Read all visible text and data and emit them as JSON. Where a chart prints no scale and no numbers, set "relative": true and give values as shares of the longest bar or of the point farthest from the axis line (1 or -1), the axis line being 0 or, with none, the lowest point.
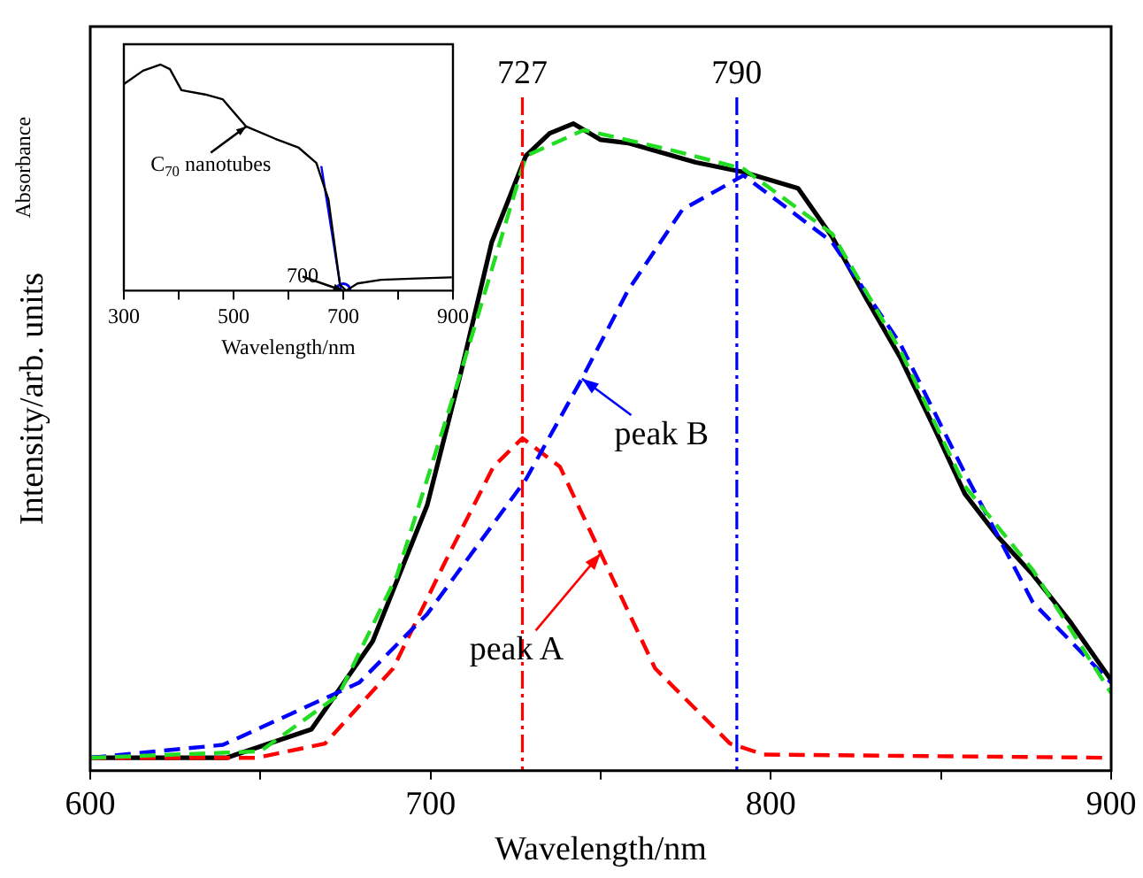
{
  "chart_data": [
    {
      "type": "line",
      "xlabel": "Wavelength/nm",
      "ylabel": "Intensity/arb. units",
      "relative": true,
      "xlim": [
        600,
        900
      ],
      "xticks": [
        600,
        {
          "value": 650,
          "label": null
        },
        700,
        {
          "value": 750,
          "label": null
        },
        800,
        {
          "value": 850,
          "label": null
        },
        900
      ],
      "legend": false,
      "line_style": "solid",
      "marker": "none",
      "series": [
        {
          "color": "#22dd22",
          "line_style": "dashed",
          "x": [
            600,
            650,
            673,
            690,
            709,
            728,
            745,
            770,
            792,
            818,
            838,
            857,
            877,
            900
          ],
          "values": [
            0.02,
            0.03,
            0.117,
            0.3,
            0.617,
            0.95,
            0.99,
            0.96,
            0.93,
            0.83,
            0.65,
            0.44,
            0.31,
            0.12
          ]
        },
        {
          "color": "#0000ff",
          "line_style": "dashed",
          "x": [
            600,
            639,
            679,
            699,
            728,
            744.5,
            758,
            774,
            792,
            818,
            838,
            857,
            877,
            900
          ],
          "values": [
            0.02,
            0.04,
            0.136,
            0.242,
            0.45,
            0.606,
            0.742,
            0.867,
            0.92,
            0.817,
            0.66,
            0.46,
            0.26,
            0.136
          ]
        },
        {
          "color": "#ff0000",
          "line_style": "dashed",
          "x": [
            600,
            649,
            669,
            689,
            704.5,
            718.5,
            727,
            738,
            750,
            766,
            788,
            798,
            900
          ],
          "values": [
            0.02,
            0.02,
            0.042,
            0.158,
            0.325,
            0.47,
            0.514,
            0.47,
            0.336,
            0.158,
            0.042,
            0.025,
            0.02
          ]
        },
        {
          "color": "#000000",
          "x": [
            600,
            640,
            665,
            683,
            699,
            709,
            718,
            728,
            735,
            742,
            750,
            758,
            768,
            778,
            792,
            808,
            818,
            828,
            838,
            848,
            857,
            867,
            877,
            888,
            900
          ],
          "values": [
            0.02,
            0.02,
            0.064,
            0.2,
            0.41,
            0.617,
            0.817,
            0.95,
            0.985,
            1,
            0.975,
            0.97,
            0.955,
            0.94,
            0.925,
            0.9,
            0.825,
            0.73,
            0.639,
            0.53,
            0.428,
            0.36,
            0.303,
            0.23,
            0.14
          ]
        }
      ],
      "ref_lines": [
        {
          "axis": "x",
          "value": 727,
          "label": "727",
          "color": "#ff0000",
          "line_style": "dashed"
        },
        {
          "axis": "x",
          "value": 790,
          "label": "790",
          "color": "#0000ff",
          "line_style": "dashed"
        }
      ],
      "annotations": [
        {
          "text": "peak B",
          "x": 744.5,
          "y": 0.606
        },
        {
          "text": "peak A",
          "x": 750,
          "y": 0.336
        }
      ]
    },
    {
      "type": "line",
      "xlabel": "Wavelength/nm",
      "ylabel": "Absorbance",
      "relative": true,
      "xlim": [
        300,
        900
      ],
      "xticks": [
        300,
        {
          "value": 400,
          "label": null
        },
        500,
        {
          "value": 600,
          "label": null
        },
        700,
        {
          "value": 800,
          "label": null
        },
        900
      ],
      "legend": false,
      "line_style": "solid",
      "marker": "none",
      "series": [
        {
          "color": "#000000",
          "x": [
            300,
            335,
            367,
            384,
            405,
            448,
            480,
            523,
            576,
            619,
            651,
            673,
            694,
            705,
            726,
            769,
            834,
            898
          ],
          "values": [
            0.914,
            0.973,
            1.0,
            0.98,
            0.887,
            0.868,
            0.847,
            0.726,
            0.672,
            0.632,
            0.565,
            0.403,
            0.027,
            0,
            0.032,
            0.048,
            0.054,
            0.059
          ]
        },
        {
          "type": "line",
          "color": "#0000ff",
          "x": [
            660,
            696
          ],
          "values": [
            0.551,
            0
          ]
        },
        {
          "type": "scatter",
          "color": "#0000ff",
          "marker": "circle",
          "x": [
            700
          ],
          "values": [
            0
          ]
        }
      ],
      "annotations": [
        {
          "text": "C$_{70}$ nanotubes",
          "x": 523,
          "y": 0.726
        },
        {
          "text": "700",
          "x": 700,
          "y": 0
        }
      ]
    }
  ]
}
